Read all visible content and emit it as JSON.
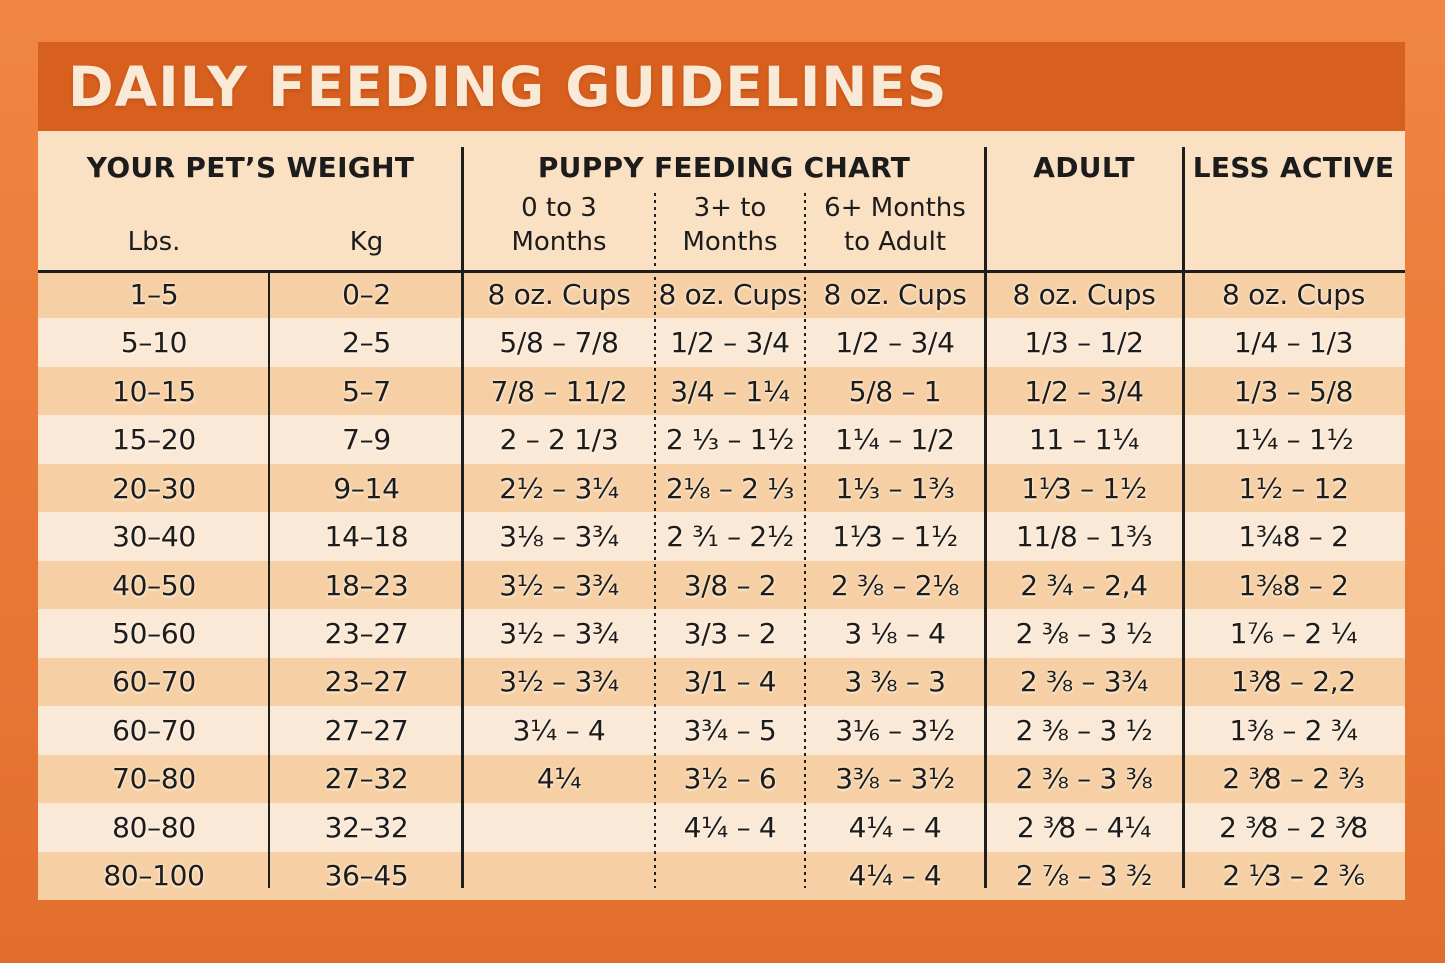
{
  "title": "DAILY FEEDING GUIDELINES",
  "colors": {
    "outer_bg_top": "#F18544",
    "outer_bg_bottom": "#E26E2D",
    "banner_bg": "#D8601F",
    "title_text": "#F8EAD6",
    "table_bg": "#FBE1C3",
    "row_dark": "#F6CFA4",
    "row_light": "#FBE9D8",
    "line_color": "#1E1E1E",
    "text_color": "#1C1C1C"
  },
  "header": {
    "weight_group": "YOUR PET’S WEIGHT",
    "puppy_group": "PUPPY FEEDING CHART",
    "adult": "ADULT",
    "less_active": "LESS ACTIVE",
    "lbs": "Lbs.",
    "kg": "Kg",
    "sub_0_3": "0 to 3\nMonths",
    "sub_3plus": "3+ to\nMonths",
    "sub_6plus": "6+ Months\nto Adult"
  },
  "chart_data": {
    "type": "table",
    "title": "DAILY FEEDING GUIDELINES",
    "units": "8 oz. Cups",
    "column_groups": [
      {
        "label": "YOUR PET’S WEIGHT",
        "span": 2
      },
      {
        "label": "PUPPY FEEDING CHART",
        "span": 3
      },
      {
        "label": "ADULT",
        "span": 1
      },
      {
        "label": "LESS ACTIVE",
        "span": 1
      }
    ],
    "columns": [
      "Lbs.",
      "Kg",
      "0 to 3 Months",
      "3+ to Months",
      "6+ Months to Adult",
      "ADULT",
      "LESS ACTIVE"
    ],
    "rows": [
      [
        "1–5",
        "0–2",
        "8 oz. Cups",
        "8 oz. Cups",
        "8 oz. Cups",
        "8 oz. Cups",
        "8 oz. Cups"
      ],
      [
        "5–10",
        "2–5",
        "5/8 – 7/8",
        "1/2 – 3/4",
        "1/2 – 3/4",
        "1/3 – 1/2",
        "1/4 – 1/3"
      ],
      [
        "10–15",
        "5–7",
        "7/8 – 11/2",
        "3/4 – 1¼",
        "5/8 – 1",
        "1/2 – 3/4",
        "1/3 – 5/8"
      ],
      [
        "15–20",
        "7–9",
        "2 – 2 1/3",
        "2 ⅓ – 1½",
        "1¼ – 1/2",
        "11 – 1¼",
        "1¼ – 1½"
      ],
      [
        "20–30",
        "9–14",
        "2½ – 3¼",
        "2⅛ – 2 ⅓",
        "1⅓ – 1³⁄₃",
        "1¹⁄3 – 1½",
        "1½ – 12"
      ],
      [
        "30–40",
        "14–18",
        "3⅛ – 3¾",
        "2 ³⁄₁ – 2½",
        "1¹⁄3 – 1½",
        "11/8 – 1³⁄₃",
        "1¾8 – 2"
      ],
      [
        "40–50",
        "18–23",
        "3½ – 3¾",
        "3/8 – 2",
        "2 ⅜ – 2⅛",
        "2 ¾ – 2,4",
        "1⅜8 – 2"
      ],
      [
        "50–60",
        "23–27",
        "3½ – 3¾",
        "3/3 – 2",
        "3 ⅛ – 4",
        "2 ⅜ – 3 ½",
        "1⁷⁄₆ – 2 ¼"
      ],
      [
        "60–70",
        "23–27",
        "3½ – 3¾",
        "3/1 – 4",
        "3 ⅜ – 3",
        "2 ⅜ – 3¾",
        "1³⁄8 – 2,2"
      ],
      [
        "60–70",
        "27–27",
        "3¼ – 4",
        "3¾ – 5",
        "3⅙ – 3½",
        "2 ⅜ – 3 ½",
        "1⅜ – 2 ¾"
      ],
      [
        "70–80",
        "27–32",
        "4¼",
        "3½ – 6",
        "3⅜ – 3½",
        "2 ⅜ – 3 ⅜",
        "2 ³⁄8 – 2 ³⁄₃"
      ],
      [
        "80–80",
        "32–32",
        "",
        "4¼ – 4",
        "4¼ – 4",
        "2 ³⁄8 – 4¼",
        "2 ³⁄8 – 2 ³⁄8"
      ],
      [
        "80–100",
        "36–45",
        "",
        "",
        "4¼ – 4",
        "2 ⅞ – 3 ³⁄₂",
        "2 ¹⁄3 – 2 ³⁄₆"
      ]
    ]
  }
}
